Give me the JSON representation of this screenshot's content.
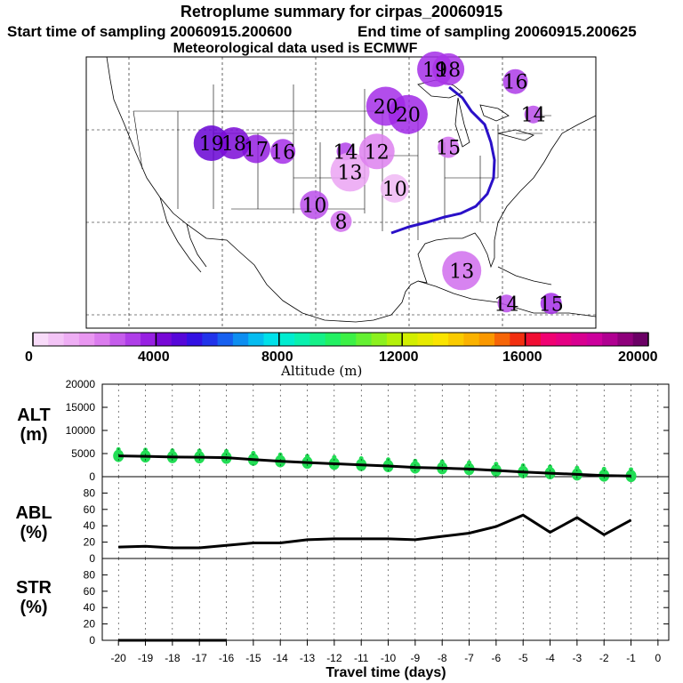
{
  "header": {
    "title": "Retroplume summary for cirpas_20060915",
    "start_label": "Start time of sampling 20060915.200600",
    "end_label": "End time of sampling 20060915.200625",
    "met_label": "Meteorological data used is ECMWF"
  },
  "colorbar": {
    "ticks": [
      "0",
      "4000",
      "8000",
      "12000",
      "16000",
      "20000"
    ],
    "label": "Altitude (m)"
  },
  "chart_data": [
    {
      "type": "map-scatter",
      "title": "Retroplume summary for cirpas_20060915",
      "color_scale": {
        "min": 0,
        "max": 20000,
        "units": "m"
      },
      "plume_labels": [
        {
          "day": 20,
          "lon": -91.5,
          "lat": 44.0,
          "alt": 3500
        },
        {
          "day": 19,
          "lon": -86.0,
          "lat": 48.5,
          "alt": 3500
        },
        {
          "day": 18,
          "lon": -84.5,
          "lat": 48.5,
          "alt": 3400
        },
        {
          "day": 16,
          "lon": -77.0,
          "lat": 47.0,
          "alt": 3300
        },
        {
          "day": 14,
          "lon": -75.0,
          "lat": 43.0,
          "alt": 3000
        },
        {
          "day": 20,
          "lon": -89.0,
          "lat": 43.0,
          "alt": 3600
        },
        {
          "day": 15,
          "lon": -84.5,
          "lat": 39.0,
          "alt": 2500
        },
        {
          "day": 14,
          "lon": -96.0,
          "lat": 38.5,
          "alt": 3200
        },
        {
          "day": 13,
          "lon": -95.5,
          "lat": 36.0,
          "alt": 1500
        },
        {
          "day": 10,
          "lon": -99.5,
          "lat": 32.0,
          "alt": 3000
        },
        {
          "day": 8,
          "lon": -96.5,
          "lat": 30.0,
          "alt": 2500
        },
        {
          "day": 16,
          "lon": -103.0,
          "lat": 38.5,
          "alt": 3500
        },
        {
          "day": 17,
          "lon": -106.0,
          "lat": 38.8,
          "alt": 3800
        },
        {
          "day": 19,
          "lon": -111.0,
          "lat": 39.5,
          "alt": 4500
        },
        {
          "day": 18,
          "lon": -108.5,
          "lat": 39.5,
          "alt": 4200
        },
        {
          "day": 12,
          "lon": -92.5,
          "lat": 38.5,
          "alt": 2200
        },
        {
          "day": 10,
          "lon": -90.5,
          "lat": 34.0,
          "alt": 1000
        },
        {
          "day": 13,
          "lon": -83.0,
          "lat": 24.0,
          "alt": 2500
        },
        {
          "day": 14,
          "lon": -78.0,
          "lat": 20.0,
          "alt": 3000
        },
        {
          "day": 15,
          "lon": -73.0,
          "lat": 20.0,
          "alt": 3500
        }
      ],
      "labels": [
        "20",
        "19",
        "18",
        "16",
        "14",
        "20",
        "15",
        "14",
        "13",
        "10",
        "8",
        "16",
        "17",
        "19",
        "18",
        "12",
        "10",
        "13",
        "14",
        "15"
      ]
    },
    {
      "type": "line+scatter",
      "ylabel": "ALT (m)",
      "ylim": [
        0,
        20000
      ],
      "yticks": [
        0,
        5000,
        10000,
        15000,
        20000
      ],
      "x": [
        -20,
        -19,
        -18,
        -17,
        -16,
        -15,
        -14,
        -13,
        -12,
        -11,
        -10,
        -9,
        -8,
        -7,
        -6,
        -5,
        -4,
        -3,
        -2,
        -1
      ],
      "values": [
        4500,
        4400,
        4250,
        4200,
        4100,
        3700,
        3350,
        3050,
        2800,
        2550,
        2300,
        2000,
        1850,
        1650,
        1350,
        1000,
        750,
        500,
        250,
        150
      ],
      "scatter_color": "#22dd55"
    },
    {
      "type": "line",
      "ylabel": "ABL (%)",
      "ylim": [
        0,
        100
      ],
      "yticks": [
        0,
        20,
        40,
        60,
        80
      ],
      "x": [
        -20,
        -19,
        -18,
        -17,
        -16,
        -15,
        -14,
        -13,
        -12,
        -11,
        -10,
        -9,
        -8,
        -7,
        -6,
        -5,
        -4,
        -3,
        -2,
        -1
      ],
      "values": [
        14,
        15,
        13,
        13,
        16,
        19,
        19,
        23,
        24,
        24,
        24,
        23,
        27,
        31,
        39,
        53,
        32,
        50,
        29,
        47
      ]
    },
    {
      "type": "line",
      "ylabel": "STR (%)",
      "ylim": [
        0,
        100
      ],
      "yticks": [
        0,
        20,
        40,
        60,
        80
      ],
      "x": [
        -20,
        -16
      ],
      "values": [
        0,
        0
      ]
    }
  ],
  "panels": {
    "alt_label_1": "ALT",
    "alt_label_2": "(m)",
    "abl_label_1": "ABL",
    "abl_label_2": "(%)",
    "str_label_1": "STR",
    "str_label_2": "(%)"
  },
  "xaxis": {
    "tick_labels": [
      "-20",
      "-19",
      "-18",
      "-17",
      "-16",
      "-15",
      "-14",
      "-13",
      "-12",
      "-11",
      "-10",
      "-9",
      "-8",
      "-7",
      "-6",
      "-5",
      "-4",
      "-3",
      "-2",
      "-1",
      "0"
    ],
    "label": "Travel time (days)"
  },
  "colors": {
    "trajectory": "#2a10c8",
    "line": "#000000"
  }
}
